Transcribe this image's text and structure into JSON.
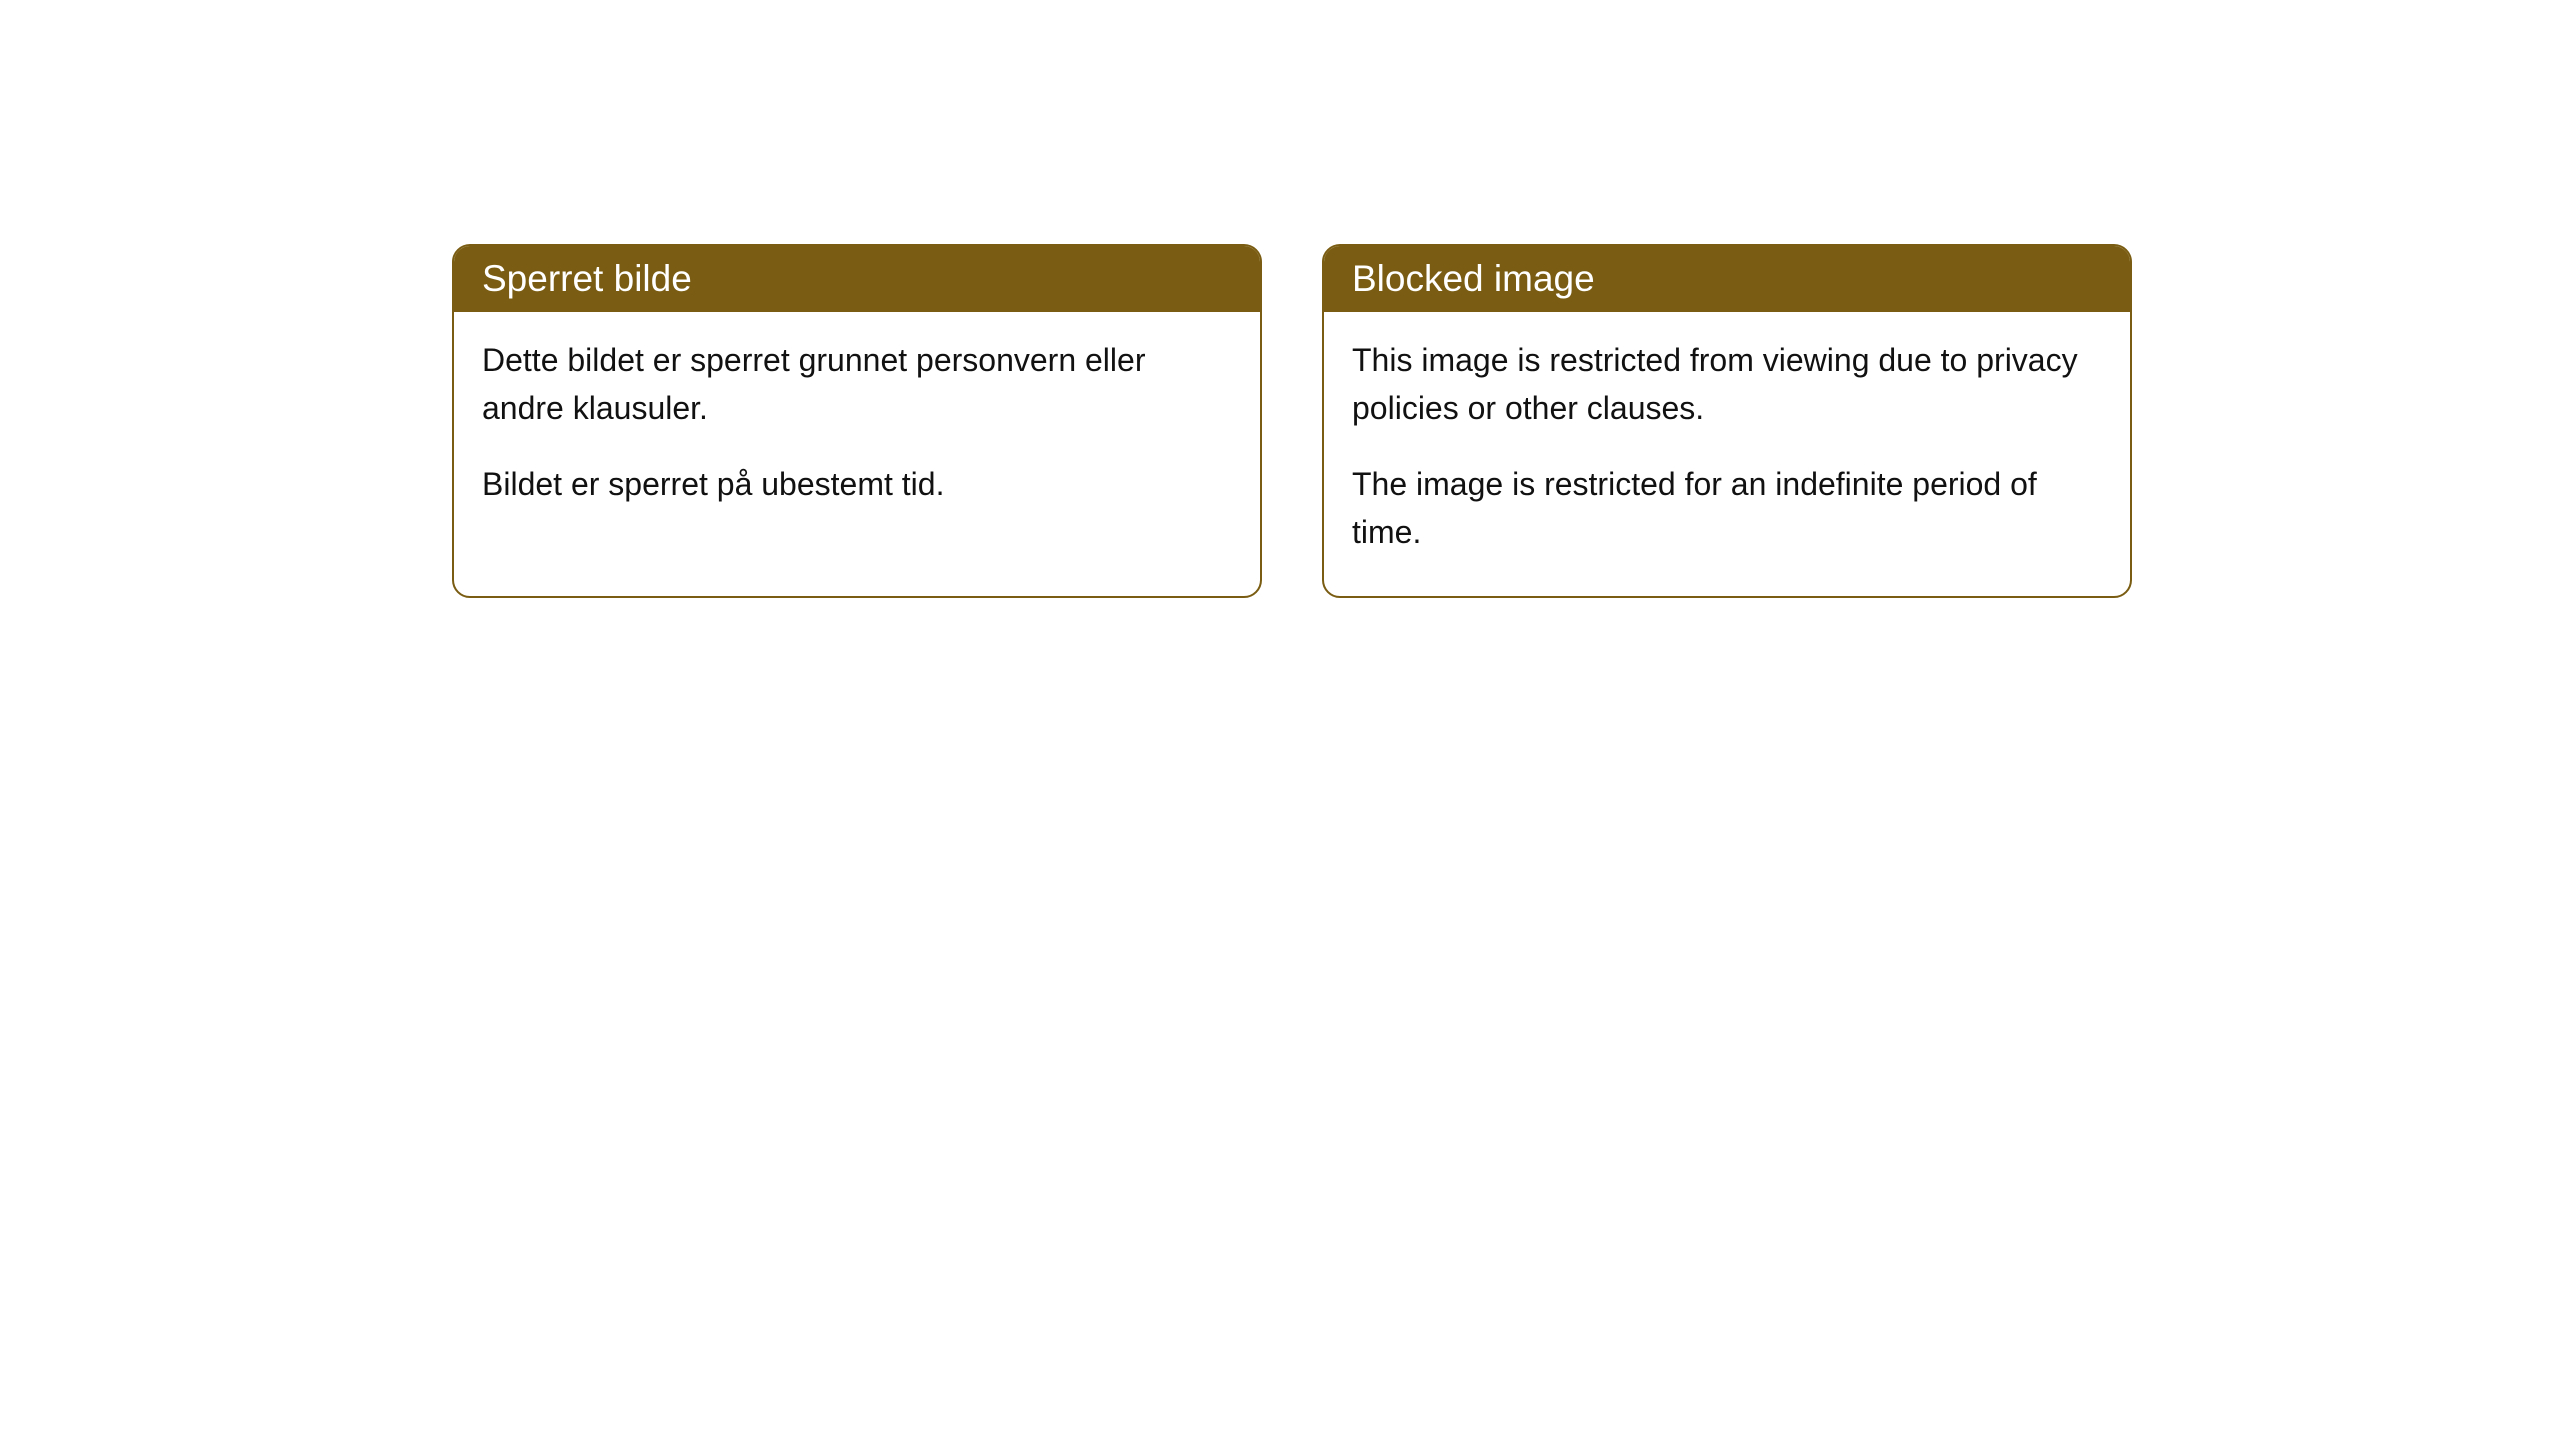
{
  "cards": [
    {
      "title": "Sperret bilde",
      "paragraph1": "Dette bildet er sperret grunnet personvern eller andre klausuler.",
      "paragraph2": "Bildet er sperret på ubestemt tid."
    },
    {
      "title": "Blocked image",
      "paragraph1": "This image is restricted from viewing due to privacy policies or other clauses.",
      "paragraph2": "The image is restricted for an indefinite period of time."
    }
  ],
  "style": {
    "header_bg_color": "#7a5d12",
    "header_text_color": "#ffffff",
    "border_color": "#7a5d12",
    "body_bg_color": "#ffffff",
    "body_text_color": "#111111",
    "border_radius": 18,
    "header_fontsize": 37,
    "body_fontsize": 32
  }
}
